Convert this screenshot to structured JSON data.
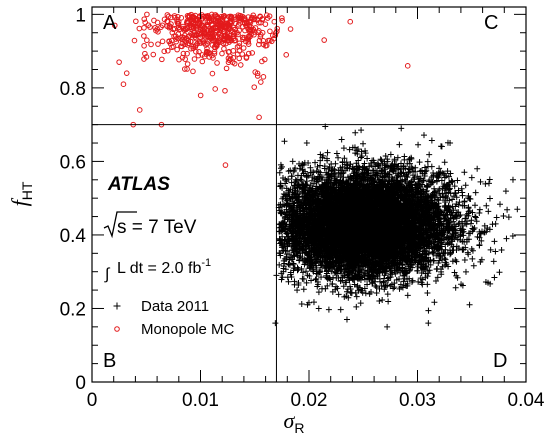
{
  "chart_data": {
    "type": "scatter",
    "xlabel": "σ",
    "xlabel_sub": "R",
    "ylabel": "f",
    "ylabel_sub": "HT",
    "xlim": [
      0,
      0.04
    ],
    "ylim": [
      0,
      1.02
    ],
    "x_ticks": [
      0,
      0.01,
      0.02,
      0.03,
      0.04
    ],
    "x_tick_labels": [
      "0",
      "0.01",
      "0.02",
      "0.03",
      "0.04"
    ],
    "y_ticks": [
      0,
      0.2,
      0.4,
      0.6,
      0.8,
      1
    ],
    "y_tick_labels": [
      "0",
      "0.2",
      "0.4",
      "0.6",
      "0.8",
      "1"
    ],
    "grid": false,
    "cut_lines": {
      "x": 0.017,
      "y": 0.7
    },
    "regions": [
      "A",
      "B",
      "C",
      "D"
    ],
    "experiment": "ATLAS",
    "energy": "s = 7 TeV",
    "luminosity": {
      "prefix": "L dt = 2.0 fb",
      "exponent": "-1"
    },
    "legend": {
      "position": "left",
      "entries": [
        {
          "label": "Data 2011",
          "marker": "+",
          "color": "#000000"
        },
        {
          "label": "Monopole MC",
          "marker": "o",
          "color": "#e31a1c"
        }
      ]
    },
    "series": [
      {
        "name": "Data 2011",
        "marker": "+",
        "color": "#000000",
        "n_points": 9000,
        "distribution": {
          "x_mean": 0.0252,
          "x_sd": 0.0039,
          "y_mean": 0.43,
          "y_sd": 0.07,
          "y_max": 0.695
        },
        "points": [
          [
            0.0175,
            0.46
          ],
          [
            0.0178,
            0.51
          ],
          [
            0.0174,
            0.41
          ],
          [
            0.0178,
            0.54
          ],
          [
            0.0176,
            0.37
          ],
          [
            0.017,
            0.29
          ],
          [
            0.0169,
            0.16
          ],
          [
            0.0215,
            0.695
          ],
          [
            0.0248,
            0.685
          ],
          [
            0.0285,
            0.69
          ],
          [
            0.033,
            0.65
          ],
          [
            0.0355,
            0.58
          ],
          [
            0.0372,
            0.43
          ],
          [
            0.0382,
            0.39
          ],
          [
            0.0392,
            0.47
          ],
          [
            0.0388,
            0.55
          ],
          [
            0.0365,
            0.27
          ],
          [
            0.0348,
            0.21
          ],
          [
            0.031,
            0.16
          ],
          [
            0.0272,
            0.15
          ],
          [
            0.0235,
            0.17
          ],
          [
            0.0209,
            0.2
          ],
          [
            0.0189,
            0.25
          ],
          [
            0.0181,
            0.32
          ],
          [
            0.0185,
            0.6
          ],
          [
            0.0198,
            0.65
          ]
        ]
      },
      {
        "name": "Monopole MC",
        "marker": "o",
        "color": "#e31a1c",
        "n_points": 520,
        "distribution": {
          "x_mean": 0.0112,
          "x_sd": 0.0028,
          "y_mean": 0.93,
          "y_sd": 0.06,
          "y_min": 0.71,
          "y_max": 1.0
        },
        "points": [
          [
            0.0038,
            0.7
          ],
          [
            0.0064,
            0.7
          ],
          [
            0.0123,
            0.59
          ],
          [
            0.0238,
            0.98
          ],
          [
            0.0291,
            0.86
          ],
          [
            0.0214,
            0.93
          ],
          [
            0.0183,
            0.96
          ],
          [
            0.0029,
            0.81
          ],
          [
            0.0032,
            0.84
          ],
          [
            0.0175,
            0.99
          ],
          [
            0.0168,
            0.98
          ],
          [
            0.0162,
            0.99
          ],
          [
            0.0158,
            0.83
          ],
          [
            0.0154,
            0.72
          ],
          [
            0.0021,
            0.97
          ],
          [
            0.0025,
            0.87
          ],
          [
            0.0044,
            0.74
          ],
          [
            0.0179,
            0.89
          ]
        ]
      }
    ]
  }
}
